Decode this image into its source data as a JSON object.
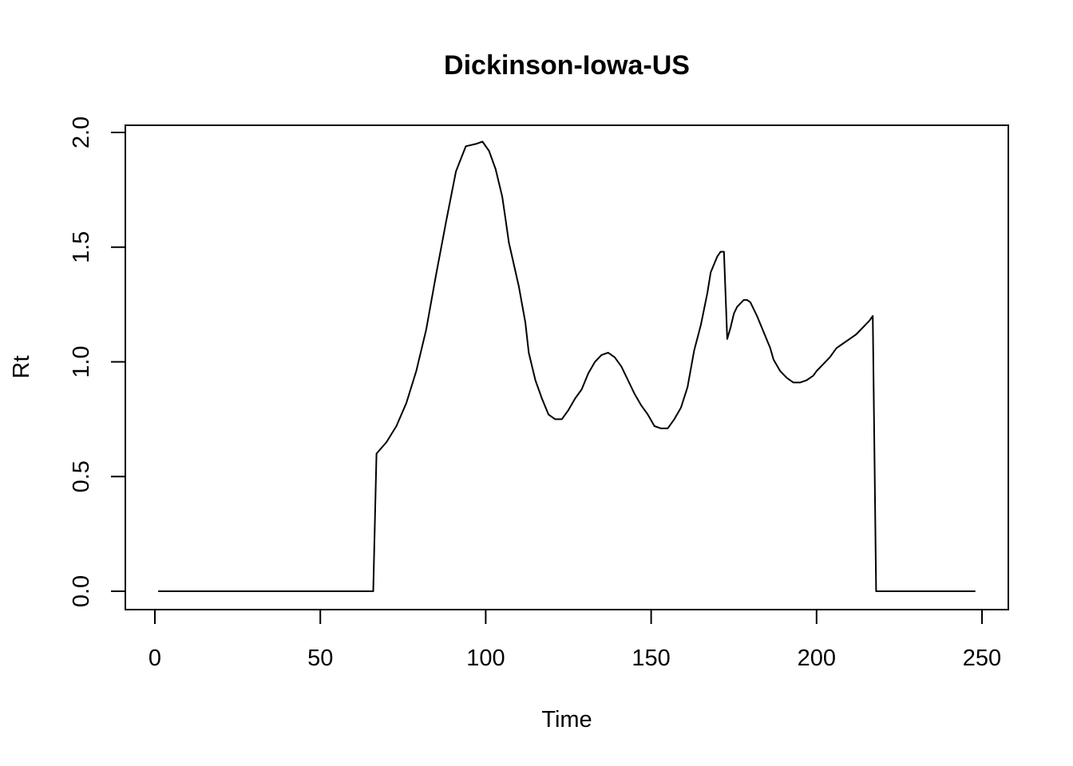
{
  "chart_data": {
    "type": "line",
    "title": "Dickinson-Iowa-US",
    "xlabel": "Time",
    "ylabel": "Rt",
    "xlim": [
      1,
      248
    ],
    "ylim": [
      0,
      2.0
    ],
    "x_ticks": [
      0,
      50,
      100,
      150,
      200,
      250
    ],
    "y_ticks": [
      0.0,
      0.5,
      1.0,
      1.5,
      2.0
    ],
    "x_tick_labels": [
      "0",
      "50",
      "100",
      "150",
      "200",
      "250"
    ],
    "y_tick_labels": [
      "0.0",
      "0.5",
      "1.0",
      "1.5",
      "2.0"
    ],
    "grid": false,
    "line_color": "#000000",
    "series": [
      {
        "x": [
          1,
          66,
          67,
          70,
          73,
          76,
          79,
          82,
          85,
          88,
          91,
          94,
          97,
          99,
          101,
          103,
          105,
          106,
          107,
          110,
          112,
          113,
          115,
          117,
          119,
          121,
          123,
          125,
          127,
          129,
          131,
          133,
          135,
          137,
          139,
          141,
          143,
          145,
          147,
          149,
          151,
          153,
          155,
          157,
          159,
          161,
          163,
          165,
          167,
          168,
          170,
          171,
          172,
          173,
          174,
          175,
          176,
          178,
          179,
          180,
          182,
          184,
          186,
          187,
          189,
          191,
          193,
          195,
          197,
          199,
          200,
          202,
          204,
          206,
          208,
          210,
          212,
          214,
          216,
          217,
          218,
          220,
          248
        ],
        "y": [
          0,
          0,
          0.6,
          0.65,
          0.72,
          0.82,
          0.96,
          1.14,
          1.38,
          1.61,
          1.83,
          1.94,
          1.95,
          1.96,
          1.92,
          1.84,
          1.72,
          1.62,
          1.52,
          1.33,
          1.17,
          1.04,
          0.92,
          0.84,
          0.77,
          0.75,
          0.75,
          0.79,
          0.84,
          0.88,
          0.95,
          1.0,
          1.03,
          1.04,
          1.02,
          0.98,
          0.92,
          0.86,
          0.81,
          0.77,
          0.72,
          0.71,
          0.71,
          0.75,
          0.8,
          0.89,
          1.05,
          1.16,
          1.3,
          1.39,
          1.46,
          1.48,
          1.48,
          1.1,
          1.15,
          1.21,
          1.24,
          1.27,
          1.27,
          1.26,
          1.2,
          1.13,
          1.06,
          1.01,
          0.96,
          0.93,
          0.91,
          0.91,
          0.92,
          0.94,
          0.96,
          0.99,
          1.02,
          1.06,
          1.08,
          1.1,
          1.12,
          1.15,
          1.18,
          1.2,
          0.0,
          0.0,
          0.0
        ]
      }
    ]
  }
}
